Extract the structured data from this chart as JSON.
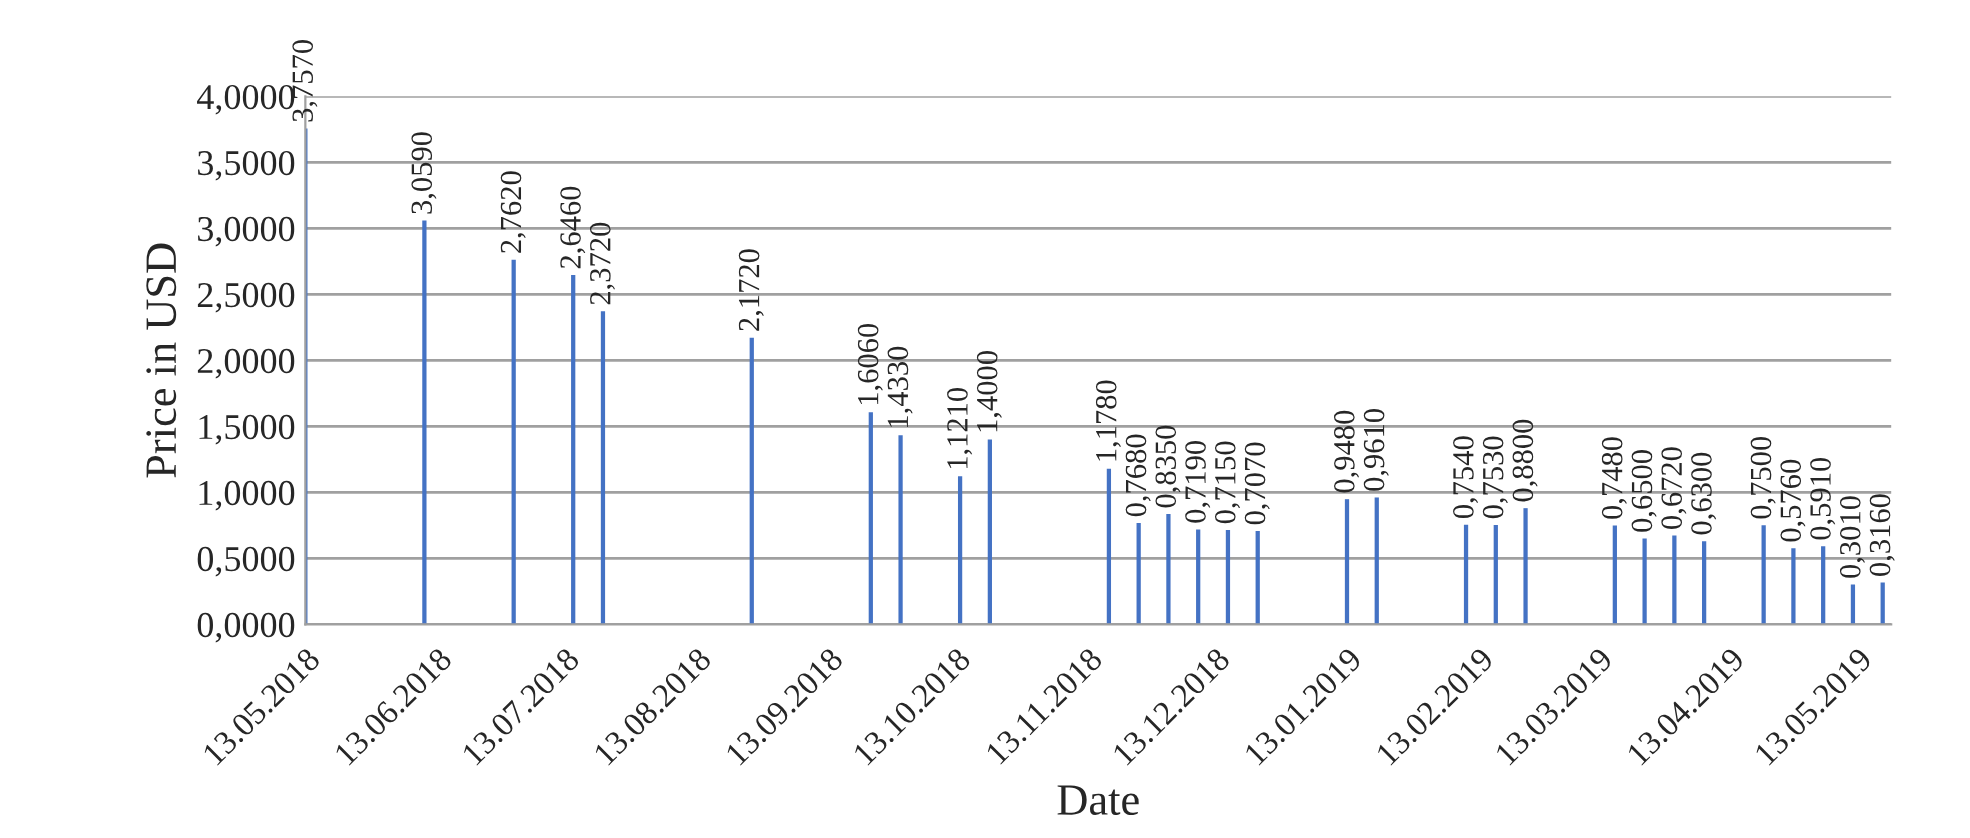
{
  "chart_data": {
    "type": "bar",
    "xlabel": "Date",
    "ylabel": "Price in USD",
    "color": "#4472c4",
    "x": [
      "2018-05-13",
      "2018-06-10",
      "2018-07-01",
      "2018-07-15",
      "2018-07-22",
      "2018-08-26",
      "2018-09-23",
      "2018-09-30",
      "2018-10-14",
      "2018-10-21",
      "2018-11-18",
      "2018-11-25",
      "2018-12-02",
      "2018-12-09",
      "2018-12-16",
      "2018-12-23",
      "2019-01-13",
      "2019-01-20",
      "2019-02-10",
      "2019-02-17",
      "2019-02-24",
      "2019-03-17",
      "2019-03-24",
      "2019-03-31",
      "2019-04-07",
      "2019-04-21",
      "2019-04-28",
      "2019-05-05",
      "2019-05-12",
      "2019-05-19"
    ],
    "values": [
      3.757,
      3.059,
      2.762,
      2.646,
      2.372,
      2.172,
      1.606,
      1.433,
      1.121,
      1.4,
      1.178,
      0.768,
      0.835,
      0.719,
      0.715,
      0.707,
      0.948,
      0.961,
      0.754,
      0.753,
      0.88,
      0.748,
      0.65,
      0.672,
      0.63,
      0.75,
      0.576,
      0.591,
      0.301,
      0.316
    ],
    "value_labels": [
      "3,7570",
      "3,0590",
      "2,7620",
      "2,6460",
      "2,3720",
      "2,1720",
      "1,6060",
      "1,4330",
      "1,1210",
      "1,4000",
      "1,1780",
      "0,7680",
      "0,8350",
      "0,7190",
      "0,7150",
      "0,7070",
      "0,9480",
      "0,9610",
      "0,7540",
      "0,7530",
      "0,8800",
      "0,7480",
      "0,6500",
      "0,6720",
      "0,6300",
      "0,7500",
      "0,5760",
      "0,5910",
      "0,3010",
      "0,3160"
    ],
    "ylim": [
      0,
      4.0
    ],
    "yticks": [
      {
        "value": 0,
        "label": "0,0000"
      },
      {
        "value": 0.5,
        "label": "0,5000"
      },
      {
        "value": 1,
        "label": "1,0000"
      },
      {
        "value": 1.5,
        "label": "1,5000"
      },
      {
        "value": 2,
        "label": "2,0000"
      },
      {
        "value": 2.5,
        "label": "2,5000"
      },
      {
        "value": 3,
        "label": "3,0000"
      },
      {
        "value": 3.5,
        "label": "3,5000"
      },
      {
        "value": 4,
        "label": "4,0000"
      }
    ],
    "xlim": [
      "2018-05-13",
      "2019-05-21"
    ],
    "xticks": [
      {
        "value": "2018-05-13",
        "label": "13.05.2018"
      },
      {
        "value": "2018-06-13",
        "label": "13.06.2018"
      },
      {
        "value": "2018-07-13",
        "label": "13.07.2018"
      },
      {
        "value": "2018-08-13",
        "label": "13.08.2018"
      },
      {
        "value": "2018-09-13",
        "label": "13.09.2018"
      },
      {
        "value": "2018-10-13",
        "label": "13.10.2018"
      },
      {
        "value": "2018-11-13",
        "label": "13.11.2018"
      },
      {
        "value": "2018-12-13",
        "label": "13.12.2018"
      },
      {
        "value": "2019-01-13",
        "label": "13.01.2019"
      },
      {
        "value": "2019-02-13",
        "label": "13.02.2019"
      },
      {
        "value": "2019-03-13",
        "label": "13.03.2019"
      },
      {
        "value": "2019-04-13",
        "label": "13.04.2019"
      },
      {
        "value": "2019-05-13",
        "label": "13.05.2019"
      }
    ],
    "grid": "y",
    "legend": false
  }
}
